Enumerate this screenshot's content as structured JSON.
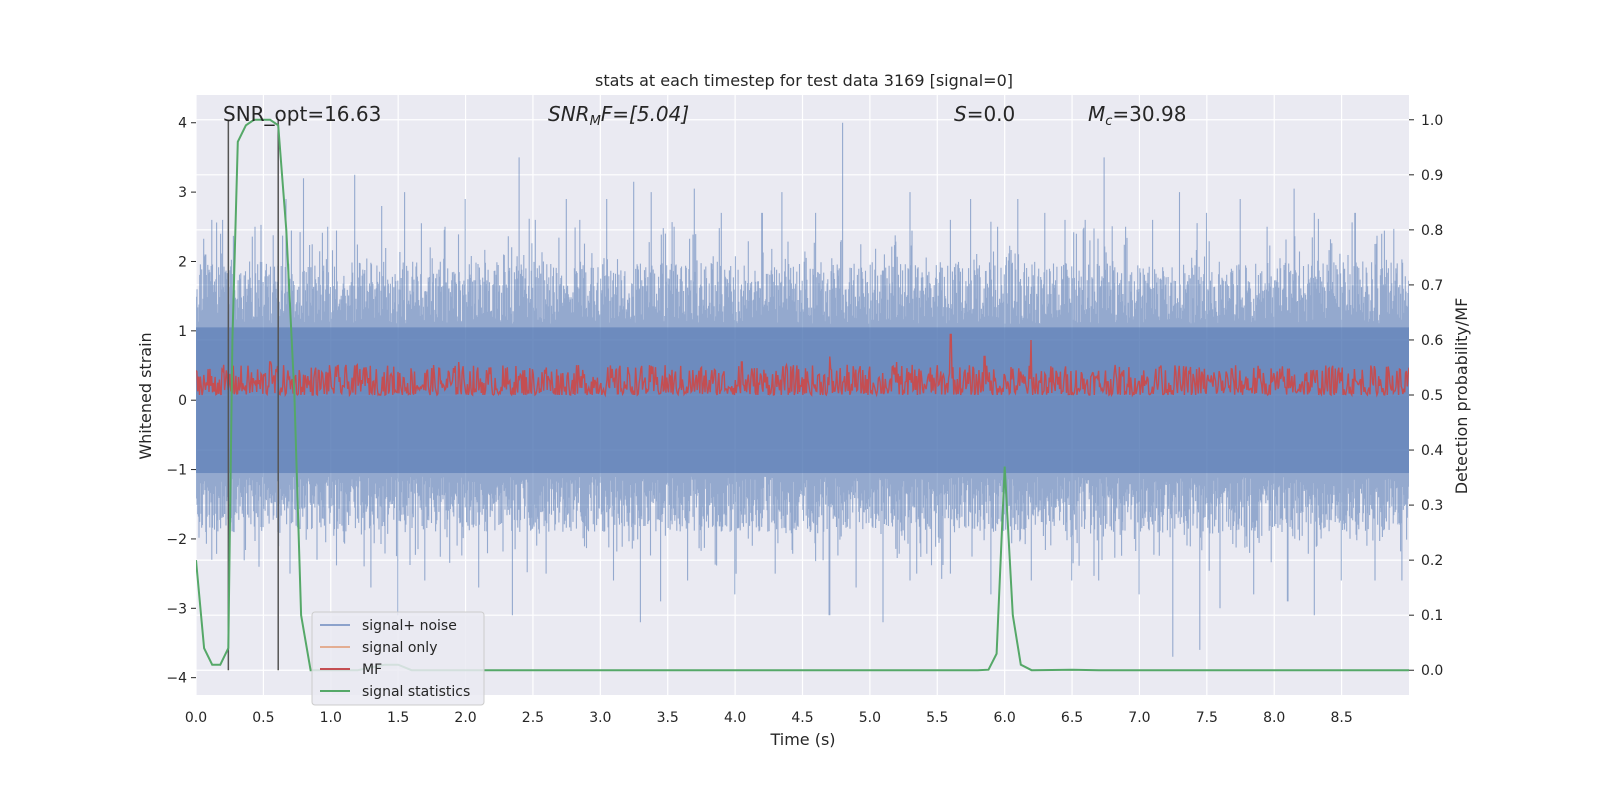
{
  "chart_data": {
    "type": "line",
    "title": "stats at each timestep for test data 3169 [signal=0]",
    "xlabel": "Time (s)",
    "ylabel": "Whitened strain",
    "ylabel_right": "Detection probability/MF",
    "xlim": [
      0,
      9.0
    ],
    "ylim": [
      -4.25,
      4.4
    ],
    "ylim_right": [
      -0.045,
      1.045
    ],
    "x_ticks": [
      "0.0",
      "0.5",
      "1.0",
      "1.5",
      "2.0",
      "2.5",
      "3.0",
      "3.5",
      "4.0",
      "4.5",
      "5.0",
      "5.5",
      "6.0",
      "6.5",
      "7.0",
      "7.5",
      "8.0",
      "8.5"
    ],
    "y_ticks": [
      "−4",
      "−3",
      "−2",
      "−1",
      "0",
      "1",
      "2",
      "3",
      "4"
    ],
    "y_ticks_right": [
      "0.0",
      "0.1",
      "0.2",
      "0.3",
      "0.4",
      "0.5",
      "0.6",
      "0.7",
      "0.8",
      "0.9",
      "1.0"
    ],
    "grid": true,
    "legend_position": "lower-left",
    "annotations": {
      "snr_opt": "SNR_opt=16.63",
      "snr_mf_label": "SNR",
      "snr_mf_sub": "M",
      "snr_mf_rest": "F=[5.04]",
      "s_label": "S",
      "s_rest": "=0.0",
      "mc_label": "M",
      "mc_sub": "c",
      "mc_rest": "=30.98"
    },
    "vertical_markers_x": [
      0.24,
      0.61
    ],
    "series": [
      {
        "name": "signal+ noise",
        "color": "#4c72b0",
        "axis": "left",
        "description_only_in_style": true,
        "spikes_pos": [
          [
            0.07,
            2.1
          ],
          [
            0.12,
            2.6
          ],
          [
            0.2,
            2.6
          ],
          [
            0.44,
            2.5
          ],
          [
            0.67,
            2.9
          ],
          [
            0.8,
            3.2
          ],
          [
            0.98,
            2.5
          ],
          [
            1.1,
            2.7
          ],
          [
            1.18,
            3.25
          ],
          [
            1.38,
            2.8
          ],
          [
            1.55,
            3.0
          ],
          [
            1.85,
            2.5
          ],
          [
            2.0,
            2.9
          ],
          [
            2.4,
            3.5
          ],
          [
            2.52,
            2.6
          ],
          [
            2.75,
            2.9
          ],
          [
            2.85,
            2.6
          ],
          [
            3.05,
            2.9
          ],
          [
            3.25,
            3.15
          ],
          [
            3.38,
            3.0
          ],
          [
            3.55,
            2.5
          ],
          [
            3.7,
            3.05
          ],
          [
            3.9,
            2.7
          ],
          [
            4.2,
            2.7
          ],
          [
            4.35,
            3.0
          ],
          [
            4.6,
            2.7
          ],
          [
            4.8,
            4.0
          ],
          [
            5.0,
            2.6
          ],
          [
            5.3,
            3.0
          ],
          [
            5.6,
            2.6
          ],
          [
            5.75,
            2.9
          ],
          [
            5.95,
            2.5
          ],
          [
            6.1,
            2.9
          ],
          [
            6.3,
            2.7
          ],
          [
            6.45,
            2.6
          ],
          [
            6.6,
            2.6
          ],
          [
            6.74,
            3.5
          ],
          [
            6.9,
            2.5
          ],
          [
            7.1,
            2.6
          ],
          [
            7.3,
            3.0
          ],
          [
            7.5,
            2.7
          ],
          [
            7.75,
            2.9
          ],
          [
            7.95,
            2.5
          ],
          [
            8.15,
            3.05
          ],
          [
            8.3,
            2.7
          ],
          [
            8.6,
            2.7
          ],
          [
            8.8,
            2.4
          ]
        ],
        "spikes_neg": [
          [
            0.05,
            -1.8
          ],
          [
            0.12,
            -2.3
          ],
          [
            0.47,
            -2.4
          ],
          [
            0.7,
            -2.5
          ],
          [
            0.9,
            -2.3
          ],
          [
            1.3,
            -2.7
          ],
          [
            1.5,
            -3.1
          ],
          [
            1.7,
            -2.6
          ],
          [
            2.1,
            -2.7
          ],
          [
            2.35,
            -3.1
          ],
          [
            2.6,
            -2.5
          ],
          [
            3.1,
            -2.6
          ],
          [
            3.3,
            -3.2
          ],
          [
            3.45,
            -2.9
          ],
          [
            3.65,
            -2.6
          ],
          [
            4.0,
            -2.8
          ],
          [
            4.3,
            -2.5
          ],
          [
            4.5,
            -2.9
          ],
          [
            4.7,
            -3.1
          ],
          [
            4.9,
            -2.7
          ],
          [
            5.1,
            -3.2
          ],
          [
            5.3,
            -2.6
          ],
          [
            5.6,
            -2.5
          ],
          [
            5.9,
            -2.8
          ],
          [
            6.2,
            -2.6
          ],
          [
            6.5,
            -2.6
          ],
          [
            6.7,
            -2.6
          ],
          [
            7.0,
            -2.8
          ],
          [
            7.25,
            -3.7
          ],
          [
            7.45,
            -3.6
          ],
          [
            7.6,
            -3.0
          ],
          [
            7.85,
            -2.8
          ],
          [
            8.1,
            -2.9
          ],
          [
            8.3,
            -3.1
          ],
          [
            8.5,
            -2.6
          ],
          [
            8.75,
            -2.6
          ],
          [
            8.95,
            -2.6
          ]
        ]
      },
      {
        "name": "signal only",
        "color": "#dd8452",
        "axis": "left",
        "values": []
      },
      {
        "name": "MF",
        "color": "#c44e52",
        "axis": "right",
        "peaks": [
          [
            0.2,
            0.59
          ],
          [
            0.55,
            0.56
          ],
          [
            1.25,
            0.55
          ],
          [
            1.95,
            0.56
          ],
          [
            2.6,
            0.55
          ],
          [
            3.55,
            0.56
          ],
          [
            4.05,
            0.56
          ],
          [
            4.7,
            0.57
          ],
          [
            5.2,
            0.56
          ],
          [
            5.6,
            0.61
          ],
          [
            5.85,
            0.57
          ],
          [
            6.2,
            0.6
          ],
          [
            7.15,
            0.55
          ],
          [
            7.95,
            0.56
          ],
          [
            8.5,
            0.55
          ]
        ]
      },
      {
        "name": "signal statistics",
        "color": "#55a868",
        "axis": "right",
        "x": [
          0.0,
          0.06,
          0.12,
          0.18,
          0.24,
          0.27,
          0.31,
          0.37,
          0.43,
          0.49,
          0.55,
          0.61,
          0.67,
          0.73,
          0.78,
          0.85,
          0.9,
          1.0,
          1.2,
          1.4,
          1.5,
          1.6,
          1.8,
          2.0,
          3.0,
          4.0,
          5.0,
          5.5,
          5.8,
          5.88,
          5.94,
          6.0,
          6.06,
          6.12,
          6.2,
          6.5,
          6.7,
          7.0,
          8.0,
          9.0
        ],
        "y": [
          0.2,
          0.04,
          0.01,
          0.01,
          0.04,
          0.6,
          0.96,
          0.99,
          1.0,
          1.0,
          1.0,
          0.99,
          0.8,
          0.5,
          0.1,
          0.0,
          0.0,
          0.0,
          0.0,
          0.01,
          0.01,
          0.0,
          0.0,
          0.0,
          0.0,
          0.0,
          0.0,
          0.0,
          0.0,
          0.001,
          0.03,
          0.37,
          0.1,
          0.01,
          0.0,
          0.001,
          0.0,
          0.0,
          0.0,
          0.0
        ]
      }
    ]
  }
}
